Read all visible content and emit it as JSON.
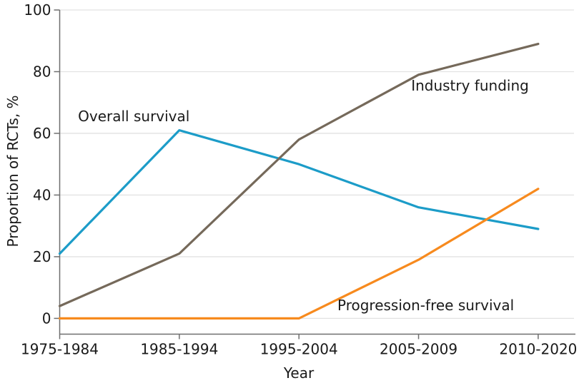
{
  "chart_data": {
    "type": "line",
    "title": "",
    "xlabel": "Year",
    "ylabel": "Proportion of RCTs, %",
    "categories": [
      "1975-1984",
      "1985-1994",
      "1995-2004",
      "2005-2009",
      "2010-2020"
    ],
    "series": [
      {
        "name": "Overall survival",
        "color": "#1c9cc8",
        "values": [
          21,
          61,
          50,
          36,
          29
        ]
      },
      {
        "name": "Industry funding",
        "color": "#75695a",
        "values": [
          4,
          21,
          58,
          79,
          89
        ]
      },
      {
        "name": "Progression-free survival",
        "color": "#f78a1e",
        "values": [
          0,
          0,
          0,
          19,
          42
        ]
      }
    ],
    "annotations": [
      {
        "text": "Overall survival",
        "x": 0.62,
        "y": 65.5
      },
      {
        "text": "Industry funding",
        "x": 3.43,
        "y": 75.5
      },
      {
        "text": "Progression-free survival",
        "x": 3.06,
        "y": 4.3
      }
    ],
    "ylim": [
      0,
      100
    ],
    "yticks": [
      0,
      20,
      40,
      60,
      80,
      100
    ],
    "grid": true,
    "legend_position": "inline-annotations",
    "colors": {
      "grid": "#e2e2e2",
      "axis": "#6f6f6f",
      "text": "#1a1a1a",
      "background": "#ffffff"
    }
  }
}
